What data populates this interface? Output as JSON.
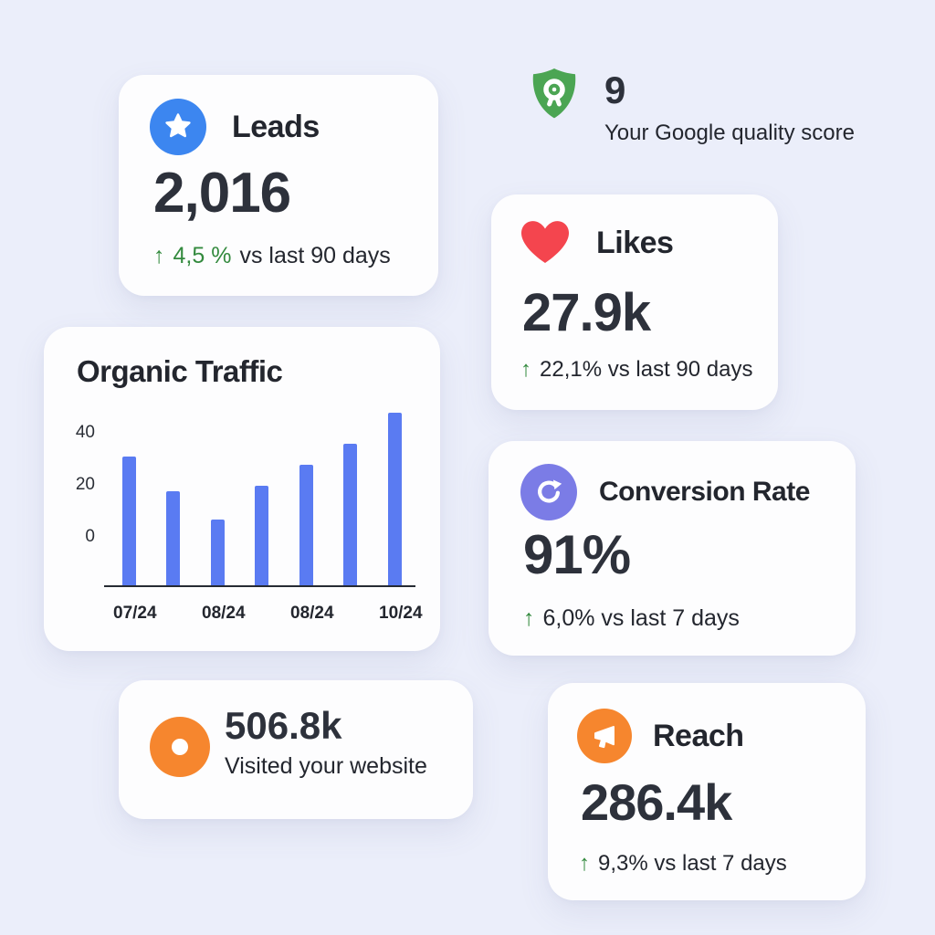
{
  "colors": {
    "background": "#ebeefa",
    "card": "#fdfdfe",
    "text": "#23262e",
    "value": "#2d313b",
    "green": "#338a3e",
    "blue": "#3c86f0",
    "red": "#f4454e",
    "shield_green": "#4ba553",
    "purple": "#7b7ce6",
    "orange": "#f6862e",
    "bar_blue": "#5a7bf2"
  },
  "leads": {
    "label": "Leads",
    "value": "2,016",
    "delta_arrow": "↑",
    "delta_highlight": "4,5 %",
    "delta_rest": "vs last 90 days"
  },
  "quality": {
    "value": "9",
    "label": "Your Google quality score"
  },
  "likes": {
    "label": "Likes",
    "value": "27.9k",
    "delta_arrow": "↑",
    "delta_rest": "22,1% vs last 90 days"
  },
  "conversion": {
    "label": "Conversion Rate",
    "value": "91%",
    "delta_arrow": "↑",
    "delta_rest": "6,0% vs last 7 days"
  },
  "visitors": {
    "value": "506.8k",
    "label": "Visited your website"
  },
  "reach": {
    "label": "Reach",
    "value": "286.4k",
    "delta_arrow": "↑",
    "delta_rest": "9,3% vs last 7 days"
  },
  "chart_data": {
    "type": "bar",
    "title": "Organic Traffic",
    "values": [
      30,
      17,
      6,
      19,
      27,
      35,
      47
    ],
    "x_labels_per_bar": [
      "07/24",
      "",
      "08/24",
      "",
      "08/24",
      "",
      "10/24"
    ],
    "y_ticks": [
      "0",
      "20",
      "40"
    ],
    "ylim": [
      0,
      50
    ],
    "xlabel": "",
    "ylabel": "",
    "grid": false,
    "legend": false,
    "bar_color": "#5a7bf2"
  }
}
